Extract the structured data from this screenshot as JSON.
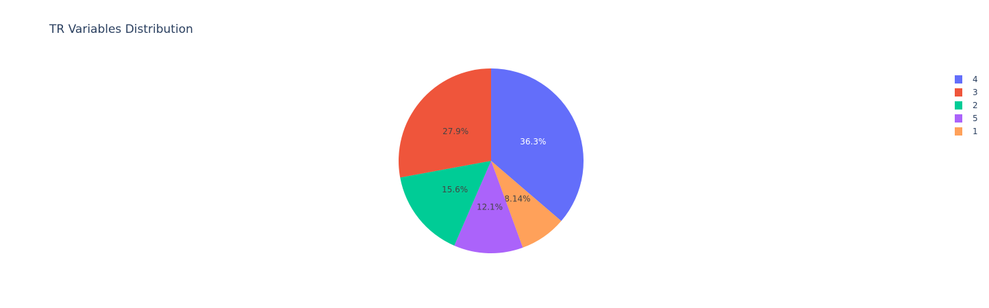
{
  "chart_data": {
    "type": "pie",
    "title": "TR Variables Distribution",
    "slices": [
      {
        "label": "4",
        "percent": 36.3,
        "percent_text": "36.3%",
        "color": "#636efa",
        "text_color": "#ffffff"
      },
      {
        "label": "1",
        "percent": 8.14,
        "percent_text": "8.14%",
        "color": "#ffa15a",
        "text_color": "#444444"
      },
      {
        "label": "5",
        "percent": 12.1,
        "percent_text": "12.1%",
        "color": "#ab63fa",
        "text_color": "#444444"
      },
      {
        "label": "2",
        "percent": 15.6,
        "percent_text": "15.6%",
        "color": "#00cc96",
        "text_color": "#444444"
      },
      {
        "label": "3",
        "percent": 27.9,
        "percent_text": "27.9%",
        "color": "#ef553b",
        "text_color": "#444444"
      }
    ],
    "legend": {
      "position": "top-right",
      "order": [
        "4",
        "3",
        "2",
        "5",
        "1"
      ]
    }
  }
}
